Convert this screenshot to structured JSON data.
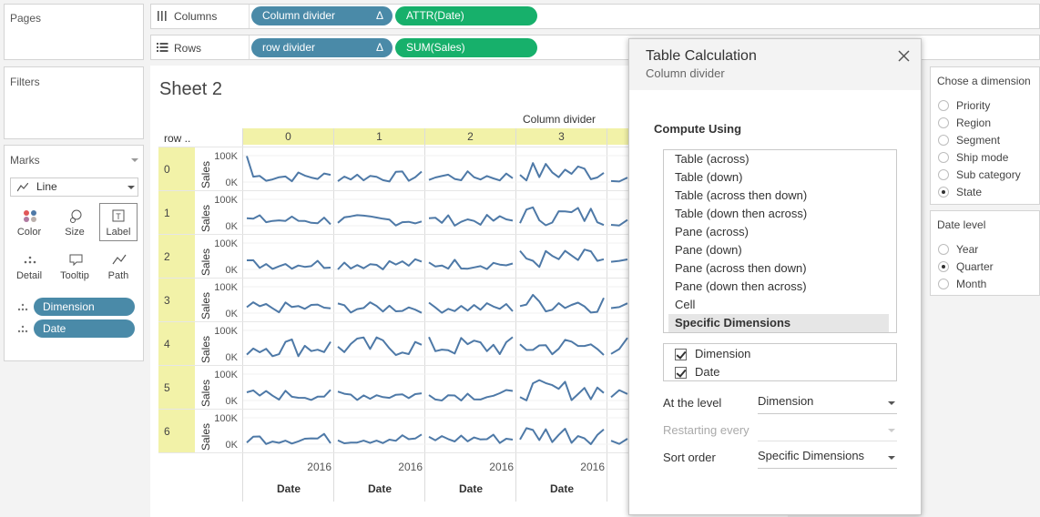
{
  "pages": {
    "title": "Pages"
  },
  "filters": {
    "title": "Filters"
  },
  "columns_shelf": {
    "label": "Columns",
    "pills": [
      "Column divider",
      "ATTR(Date)"
    ]
  },
  "rows_shelf": {
    "label": "Rows",
    "pills": [
      "row divider",
      "SUM(Sales)"
    ]
  },
  "pill_delta": "Δ",
  "marks": {
    "title": "Marks",
    "mark_type": "Line",
    "buttons": [
      "Color",
      "Size",
      "Label",
      "Detail",
      "Tooltip",
      "Path"
    ],
    "fields": [
      "Dimension",
      "Date"
    ]
  },
  "sheet": {
    "title": "Sheet 2",
    "column_header_title": "Column divider",
    "row_header_title": "row ..",
    "columns": [
      "0",
      "1",
      "2",
      "3"
    ],
    "rows": [
      "0",
      "1",
      "2",
      "3",
      "4",
      "5",
      "6"
    ],
    "axis_title": "Sales",
    "y_tick_top": "100K",
    "y_tick_bottom": "0K",
    "x_tick": "2016",
    "x_title": "Date"
  },
  "dialog": {
    "title": "Table Calculation",
    "subtitle": "Column divider",
    "close_icon": "close-icon",
    "compute_using_label": "Compute Using",
    "compute_options": [
      "Table (across)",
      "Table (down)",
      "Table (across then down)",
      "Table (down then across)",
      "Pane (across)",
      "Pane (down)",
      "Pane (across then down)",
      "Pane (down then across)",
      "Cell",
      "Specific Dimensions"
    ],
    "selected_option": "Specific Dimensions",
    "dimensions": [
      {
        "label": "Dimension",
        "checked": true
      },
      {
        "label": "Date",
        "checked": true
      }
    ],
    "at_the_level_label": "At the level",
    "at_the_level_value": "Dimension",
    "restarting_every_label": "Restarting every",
    "restarting_every_value": "",
    "sort_order_label": "Sort order",
    "sort_order_value": "Specific Dimensions"
  },
  "dimension_param": {
    "title": "Chose a dimension",
    "options": [
      "Priority",
      "Region",
      "Segment",
      "Ship mode",
      "Sub category",
      "State"
    ],
    "selected": "State"
  },
  "date_level_param": {
    "title": "Date level",
    "options": [
      "Year",
      "Quarter",
      "Month"
    ],
    "selected": "Quarter"
  },
  "colors": {
    "pill_blue": "#4a8aa8",
    "pill_green": "#17b06b",
    "header_yellow": "#f2f2a8",
    "line": "#4e79a7"
  }
}
